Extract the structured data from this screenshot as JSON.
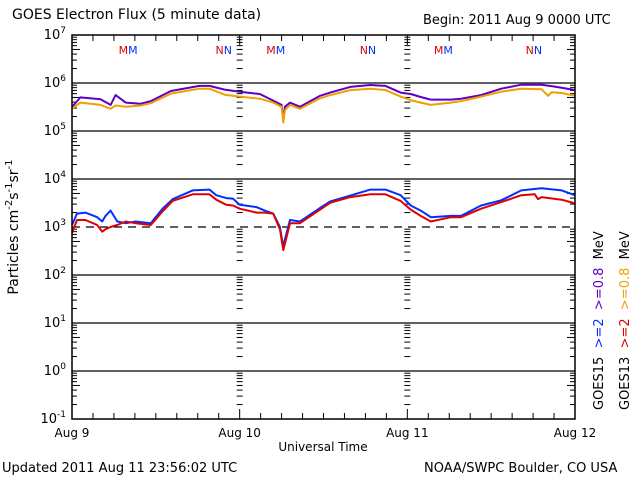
{
  "chart_data": {
    "type": "line",
    "title": "GOES Electron Flux (5 minute data)",
    "begin_label": "Begin: 2011 Aug 9 0000 UTC",
    "xlabel": "Universal Time",
    "ylabel": "Particles cm",
    "ylabel_parts": {
      "base": "Particles cm",
      "exp1": "-2",
      "s": "s",
      "exp2": "-1",
      "sr": "sr",
      "exp3": "-1"
    },
    "yscale": "log",
    "ylim_exponents": [
      -1,
      7
    ],
    "y_tick_base": "10",
    "y_tick_exponents": [
      "7",
      "6",
      "5",
      "4",
      "3",
      "2",
      "1",
      "0",
      "-1"
    ],
    "x_unit": "days since 2011 Aug 9 00:00 UTC",
    "xlim": [
      0,
      3
    ],
    "x_ticks": [
      {
        "value": 0,
        "label": "Aug 9"
      },
      {
        "value": 1,
        "label": "Aug 10"
      },
      {
        "value": 2,
        "label": "Aug 11"
      },
      {
        "value": 3,
        "label": "Aug 12"
      }
    ],
    "grid": "horizontal lines at each decade",
    "threshold_line": {
      "value": 1000,
      "style": "dashed"
    },
    "markers": [
      {
        "label": "M",
        "x": 0.32,
        "color": "#e00000"
      },
      {
        "label": "M",
        "x": 0.35,
        "color": "#0030ff"
      },
      {
        "label": "N",
        "x": 0.89,
        "color": "#e00000"
      },
      {
        "label": "N",
        "x": 0.92,
        "color": "#0030ff"
      },
      {
        "label": "M",
        "x": 1.2,
        "color": "#e00000"
      },
      {
        "label": "M",
        "x": 1.23,
        "color": "#0030ff"
      },
      {
        "label": "N",
        "x": 1.75,
        "color": "#e00000"
      },
      {
        "label": "N",
        "x": 1.78,
        "color": "#0030ff"
      },
      {
        "label": "M",
        "x": 2.2,
        "color": "#e00000"
      },
      {
        "label": "M",
        "x": 2.23,
        "color": "#0030ff"
      },
      {
        "label": "N",
        "x": 2.74,
        "color": "#e00000"
      },
      {
        "label": "N",
        "x": 2.77,
        "color": "#0030ff"
      }
    ],
    "legend": {
      "placement": "right, rotated vertical",
      "rows": [
        {
          "satellite": "GOES15",
          "entries": [
            {
              "label": ">=2",
              "color": "#0030ff"
            },
            {
              "label": ">=0.8",
              "color": "#6000c0"
            },
            {
              "label": "MeV",
              "color": "#000000"
            }
          ]
        },
        {
          "satellite": "GOES13",
          "entries": [
            {
              "label": ">=2",
              "color": "#e00000"
            },
            {
              "label": ">=0.8",
              "color": "#f0a000"
            },
            {
              "label": "MeV",
              "color": "#000000"
            }
          ]
        }
      ]
    },
    "series": [
      {
        "name": "GOES15 >=0.8 MeV",
        "color": "#6000c0",
        "x": [
          0.0,
          0.05,
          0.17,
          0.23,
          0.26,
          0.32,
          0.41,
          0.47,
          0.59,
          0.76,
          0.82,
          0.91,
          1.0,
          1.12,
          1.2,
          1.25,
          1.26,
          1.27,
          1.3,
          1.36,
          1.48,
          1.54,
          1.66,
          1.78,
          1.87,
          1.96,
          2.02,
          2.08,
          2.14,
          2.26,
          2.32,
          2.44,
          2.56,
          2.68,
          2.8,
          2.86,
          2.92,
          3.0
        ],
        "y": [
          316000.0,
          500000.0,
          460000.0,
          350000.0,
          560000.0,
          390000.0,
          370000.0,
          420000.0,
          680000.0,
          870000.0,
          870000.0,
          730000.0,
          660000.0,
          590000.0,
          430000.0,
          350000.0,
          170000.0,
          320000.0,
          390000.0,
          320000.0,
          540000.0,
          630000.0,
          830000.0,
          910000.0,
          870000.0,
          630000.0,
          590000.0,
          510000.0,
          450000.0,
          450000.0,
          470000.0,
          560000.0,
          760000.0,
          920000.0,
          920000.0,
          860000.0,
          800000.0,
          710000.0
        ]
      },
      {
        "name": "GOES13 >=0.8 MeV",
        "color": "#f0a000",
        "x": [
          0.0,
          0.05,
          0.17,
          0.23,
          0.26,
          0.32,
          0.41,
          0.47,
          0.59,
          0.76,
          0.82,
          0.91,
          1.0,
          1.12,
          1.2,
          1.25,
          1.26,
          1.27,
          1.3,
          1.36,
          1.48,
          1.54,
          1.66,
          1.78,
          1.87,
          1.96,
          2.02,
          2.08,
          2.14,
          2.26,
          2.32,
          2.44,
          2.56,
          2.68,
          2.8,
          2.84,
          2.86,
          2.92,
          3.0
        ],
        "y": [
          290000.0,
          390000.0,
          350000.0,
          290000.0,
          340000.0,
          320000.0,
          340000.0,
          380000.0,
          600000.0,
          760000.0,
          760000.0,
          570000.0,
          520000.0,
          470000.0,
          390000.0,
          320000.0,
          150000.0,
          270000.0,
          350000.0,
          290000.0,
          480000.0,
          560000.0,
          710000.0,
          760000.0,
          710000.0,
          520000.0,
          440000.0,
          390000.0,
          350000.0,
          390000.0,
          420000.0,
          520000.0,
          660000.0,
          760000.0,
          740000.0,
          540000.0,
          640000.0,
          620000.0,
          540000.0
        ]
      },
      {
        "name": "GOES15 >=2 MeV",
        "color": "#0030ff",
        "x": [
          0.0,
          0.03,
          0.08,
          0.15,
          0.18,
          0.2,
          0.23,
          0.27,
          0.32,
          0.38,
          0.47,
          0.54,
          0.6,
          0.72,
          0.82,
          0.86,
          0.92,
          0.96,
          1.0,
          1.1,
          1.15,
          1.2,
          1.24,
          1.26,
          1.27,
          1.3,
          1.36,
          1.48,
          1.54,
          1.66,
          1.78,
          1.87,
          1.96,
          2.02,
          2.08,
          2.14,
          2.26,
          2.32,
          2.44,
          2.56,
          2.68,
          2.8,
          2.92,
          3.0
        ],
        "y": [
          1100.0,
          1900.0,
          2000.0,
          1600.0,
          1300.0,
          1700.0,
          2200.0,
          1300.0,
          1200.0,
          1300.0,
          1200.0,
          2400.0,
          3800.0,
          5800.0,
          6000.0,
          4600.0,
          4000.0,
          3900.0,
          2900.0,
          2600.0,
          2200.0,
          1900.0,
          1000.0,
          380.0,
          550.0,
          1400.0,
          1300.0,
          2500.0,
          3400.0,
          4500.0,
          6000.0,
          6000.0,
          4600.0,
          2800.0,
          2200.0,
          1600.0,
          1700.0,
          1700.0,
          2800.0,
          3600.0,
          5800.0,
          6400.0,
          5800.0,
          4600.0
        ]
      },
      {
        "name": "GOES13 >=2 MeV",
        "color": "#e00000",
        "x": [
          0.0,
          0.03,
          0.08,
          0.15,
          0.18,
          0.2,
          0.23,
          0.27,
          0.32,
          0.38,
          0.47,
          0.54,
          0.6,
          0.72,
          0.82,
          0.86,
          0.92,
          0.96,
          1.0,
          1.1,
          1.15,
          1.2,
          1.24,
          1.26,
          1.27,
          1.3,
          1.36,
          1.48,
          1.54,
          1.66,
          1.78,
          1.87,
          1.96,
          2.02,
          2.08,
          2.14,
          2.26,
          2.32,
          2.44,
          2.56,
          2.68,
          2.76,
          2.78,
          2.8,
          2.92,
          3.0
        ],
        "y": [
          750.0,
          1400.0,
          1400.0,
          1100.0,
          800.0,
          900.0,
          1000.0,
          1100.0,
          1300.0,
          1200.0,
          1100.0,
          2100.0,
          3500.0,
          4800.0,
          4800.0,
          3700.0,
          2900.0,
          2800.0,
          2400.0,
          2000.0,
          2000.0,
          1900.0,
          900.0,
          330.0,
          450.0,
          1200.0,
          1200.0,
          2300.0,
          3200.0,
          4200.0,
          4800.0,
          4800.0,
          3500.0,
          2300.0,
          1700.0,
          1300.0,
          1600.0,
          1600.0,
          2400.0,
          3300.0,
          4600.0,
          4800.0,
          3800.0,
          4200.0,
          3700.0,
          3100.0
        ]
      }
    ]
  },
  "footer": {
    "updated": "Updated 2011 Aug 11 23:56:02 UTC",
    "source": "NOAA/SWPC Boulder, CO USA"
  }
}
